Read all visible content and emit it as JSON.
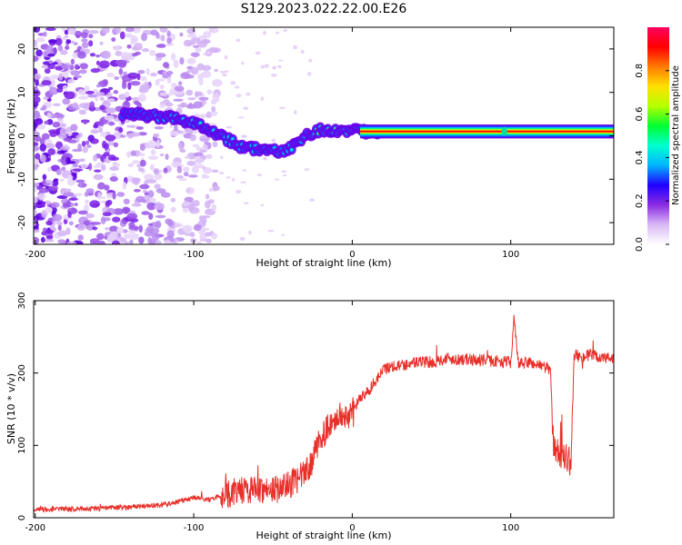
{
  "title": "S129.2023.022.22.00.E26",
  "chart_data": [
    {
      "type": "heatmap",
      "xlabel": "Height of straight line (km)",
      "ylabel": "Frequency (Hz)",
      "xlim": [
        -201,
        165
      ],
      "ylim": [
        -25,
        25
      ],
      "x_ticks": [
        -200,
        -100,
        0,
        100
      ],
      "y_ticks": [
        -20,
        -10,
        0,
        10,
        20
      ],
      "colorbar": {
        "label": "Normalized spectral amplitude",
        "range": [
          0,
          1
        ],
        "ticks": [
          "0.0",
          "0.2",
          "0.4",
          "0.6",
          "0.8"
        ],
        "tick_values": [
          0,
          0.2,
          0.4,
          0.6,
          0.8
        ],
        "colors": [
          "#ffffff",
          "#d9b8f5",
          "#8a2be2",
          "#2000ff",
          "#00b4ff",
          "#00ffd0",
          "#00ff30",
          "#b4ff00",
          "#ffe000",
          "#ff7a00",
          "#ff0000",
          "#ff0060"
        ]
      },
      "peak_ridge": {
        "height_km": [
          -140,
          -125,
          -110,
          -100,
          -90,
          -80,
          -70,
          -60,
          -50,
          -45,
          -40,
          -30,
          -20,
          -10,
          0,
          10,
          20,
          100,
          165
        ],
        "frequency_hz": [
          5.0,
          4.5,
          4.0,
          3.0,
          1.5,
          -0.5,
          -2.5,
          -3.0,
          -3.5,
          -4.0,
          -3.0,
          0.0,
          1.5,
          1.0,
          1.0,
          1.0,
          1.0,
          1.0,
          1.0
        ]
      },
      "noise_region_km": [
        -201,
        -85
      ]
    },
    {
      "type": "line",
      "xlabel": "Height of straight line (km)",
      "ylabel": "SNR (10 * v/v)",
      "xlim": [
        -201,
        165
      ],
      "ylim": [
        0,
        300
      ],
      "x_ticks": [
        -200,
        -100,
        0,
        100
      ],
      "y_ticks": [
        0,
        100,
        200,
        300
      ],
      "color": "#e8302a",
      "x": [
        -200,
        -180,
        -160,
        -140,
        -120,
        -105,
        -100,
        -90,
        -80,
        -70,
        -60,
        -50,
        -40,
        -30,
        -25,
        -20,
        -15,
        -10,
        -5,
        0,
        5,
        10,
        15,
        20,
        25,
        30,
        40,
        50,
        60,
        80,
        100,
        102,
        105,
        110,
        120,
        125,
        127,
        130,
        135,
        138,
        140,
        145,
        150,
        160,
        165
      ],
      "values": [
        12,
        12,
        13,
        15,
        18,
        24,
        28,
        25,
        32,
        38,
        40,
        38,
        45,
        60,
        80,
        110,
        125,
        140,
        140,
        145,
        165,
        175,
        190,
        205,
        210,
        210,
        215,
        215,
        220,
        218,
        215,
        275,
        210,
        215,
        210,
        205,
        95,
        90,
        85,
        75,
        225,
        222,
        225,
        220,
        222
      ]
    }
  ]
}
